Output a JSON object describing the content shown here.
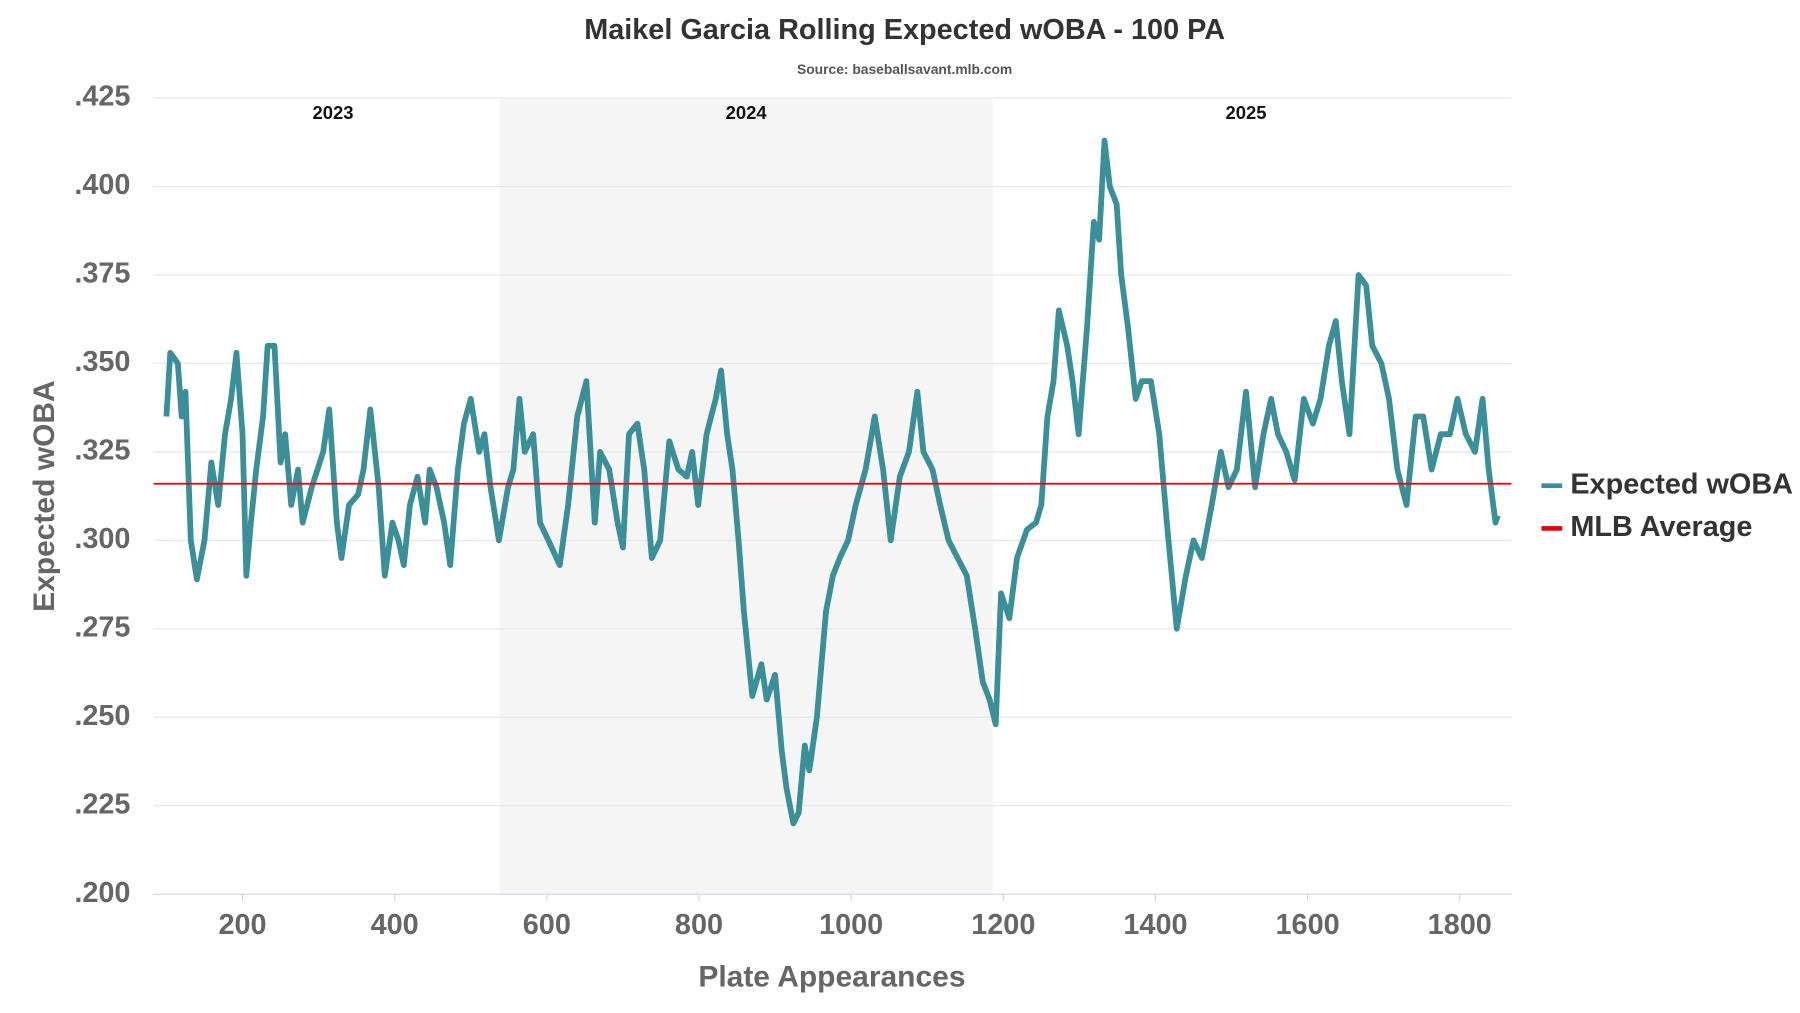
{
  "chart_data": {
    "type": "line",
    "title": "Maikel Garcia Rolling Expected wOBA - 100 PA",
    "subtitle": "Source: baseballsavant.mlb.com",
    "x_label": "Plate Appearances",
    "y_label": "Expected wOBA",
    "xlim": [
      83,
      1868
    ],
    "xticks": [
      200,
      400,
      600,
      800,
      1000,
      1200,
      1400,
      1600,
      1800
    ],
    "ylim": [
      0.2,
      0.425
    ],
    "yticks": [
      {
        "value": 0.2,
        "label": ".200"
      },
      {
        "value": 0.225,
        "label": ".225"
      },
      {
        "value": 0.25,
        "label": ".250"
      },
      {
        "value": 0.275,
        "label": ".275"
      },
      {
        "value": 0.3,
        "label": ".300"
      },
      {
        "value": 0.325,
        "label": ".325"
      },
      {
        "value": 0.35,
        "label": ".350"
      },
      {
        "value": 0.375,
        "label": ".375"
      },
      {
        "value": 0.4,
        "label": ".400"
      },
      {
        "value": 0.425,
        "label": ".425"
      }
    ],
    "grid": true,
    "legend": "right",
    "regions": [
      {
        "label": "2023",
        "start": 100,
        "end": 538,
        "shaded": false
      },
      {
        "label": "2024",
        "start": 538,
        "end": 1186,
        "shaded": true
      },
      {
        "label": "2025",
        "start": 1186,
        "end": 1852,
        "shaded": false
      }
    ],
    "reference_line": {
      "name": "MLB Average",
      "value": 0.316,
      "color": "#e8000b"
    },
    "x": [
      100,
      105,
      115,
      120,
      125,
      132,
      140,
      150,
      159,
      168,
      177,
      185,
      192,
      200,
      205,
      211,
      218,
      227,
      233,
      242,
      250,
      256,
      264,
      273,
      279,
      291,
      306,
      314,
      324,
      330,
      340,
      352,
      359,
      368,
      379,
      387,
      397,
      405,
      412,
      420,
      430,
      440,
      446,
      455,
      465,
      473,
      483,
      491,
      500,
      511,
      518,
      526,
      537,
      549,
      556,
      564,
      571,
      582,
      591,
      602,
      617,
      628,
      640,
      652,
      663,
      670,
      682,
      693,
      700,
      708,
      719,
      728,
      738,
      749,
      761,
      773,
      784,
      791,
      799,
      810,
      822,
      829,
      837,
      844,
      852,
      859,
      870,
      882,
      889,
      900,
      909,
      915,
      924,
      931,
      939,
      945,
      955,
      961,
      967,
      976,
      985,
      996,
      1006,
      1019,
      1031,
      1042,
      1052,
      1064,
      1076,
      1087,
      1095,
      1107,
      1117,
      1128,
      1140,
      1152,
      1163,
      1173,
      1182,
      1190,
      1197,
      1208,
      1218,
      1231,
      1243,
      1250,
      1258,
      1266,
      1273,
      1284,
      1291,
      1299,
      1310,
      1319,
      1326,
      1333,
      1340,
      1349,
      1355,
      1364,
      1374,
      1382,
      1394,
      1405,
      1415,
      1428,
      1440,
      1450,
      1461,
      1474,
      1486,
      1496,
      1507,
      1519,
      1531,
      1542,
      1552,
      1561,
      1572,
      1583,
      1595,
      1607,
      1617,
      1628,
      1637,
      1645,
      1655,
      1667,
      1677,
      1685,
      1697,
      1707,
      1718,
      1730,
      1742,
      1752,
      1763,
      1775,
      1787,
      1797,
      1808,
      1820,
      1830,
      1838,
      1847,
      1850
    ],
    "series": [
      {
        "name": "Expected wOBA",
        "color": "#3a8f99",
        "values": [
          0.335,
          0.353,
          0.35,
          0.335,
          0.342,
          0.3,
          0.289,
          0.3,
          0.322,
          0.31,
          0.33,
          0.34,
          0.353,
          0.33,
          0.29,
          0.305,
          0.32,
          0.335,
          0.355,
          0.355,
          0.322,
          0.33,
          0.31,
          0.32,
          0.305,
          0.315,
          0.325,
          0.337,
          0.305,
          0.295,
          0.31,
          0.313,
          0.32,
          0.337,
          0.315,
          0.29,
          0.305,
          0.3,
          0.293,
          0.31,
          0.318,
          0.305,
          0.32,
          0.315,
          0.305,
          0.293,
          0.32,
          0.333,
          0.34,
          0.325,
          0.33,
          0.315,
          0.3,
          0.315,
          0.32,
          0.34,
          0.325,
          0.33,
          0.305,
          0.3,
          0.293,
          0.31,
          0.335,
          0.345,
          0.305,
          0.325,
          0.32,
          0.305,
          0.298,
          0.33,
          0.333,
          0.32,
          0.295,
          0.3,
          0.328,
          0.32,
          0.318,
          0.325,
          0.31,
          0.33,
          0.34,
          0.348,
          0.33,
          0.32,
          0.3,
          0.28,
          0.256,
          0.265,
          0.255,
          0.262,
          0.24,
          0.23,
          0.22,
          0.223,
          0.242,
          0.235,
          0.25,
          0.265,
          0.28,
          0.29,
          0.295,
          0.3,
          0.31,
          0.32,
          0.335,
          0.32,
          0.3,
          0.318,
          0.325,
          0.342,
          0.325,
          0.32,
          0.31,
          0.3,
          0.295,
          0.29,
          0.275,
          0.26,
          0.255,
          0.248,
          0.285,
          0.278,
          0.295,
          0.303,
          0.305,
          0.31,
          0.335,
          0.345,
          0.365,
          0.355,
          0.345,
          0.33,
          0.36,
          0.39,
          0.385,
          0.413,
          0.4,
          0.395,
          0.375,
          0.36,
          0.34,
          0.345,
          0.345,
          0.33,
          0.305,
          0.275,
          0.29,
          0.3,
          0.295,
          0.31,
          0.325,
          0.315,
          0.32,
          0.342,
          0.315,
          0.33,
          0.34,
          0.33,
          0.325,
          0.317,
          0.34,
          0.333,
          0.34,
          0.355,
          0.362,
          0.345,
          0.33,
          0.375,
          0.372,
          0.355,
          0.35,
          0.34,
          0.32,
          0.31,
          0.335,
          0.335,
          0.32,
          0.33,
          0.33,
          0.34,
          0.33,
          0.325,
          0.34,
          0.32,
          0.305,
          0.307
        ]
      }
    ]
  }
}
